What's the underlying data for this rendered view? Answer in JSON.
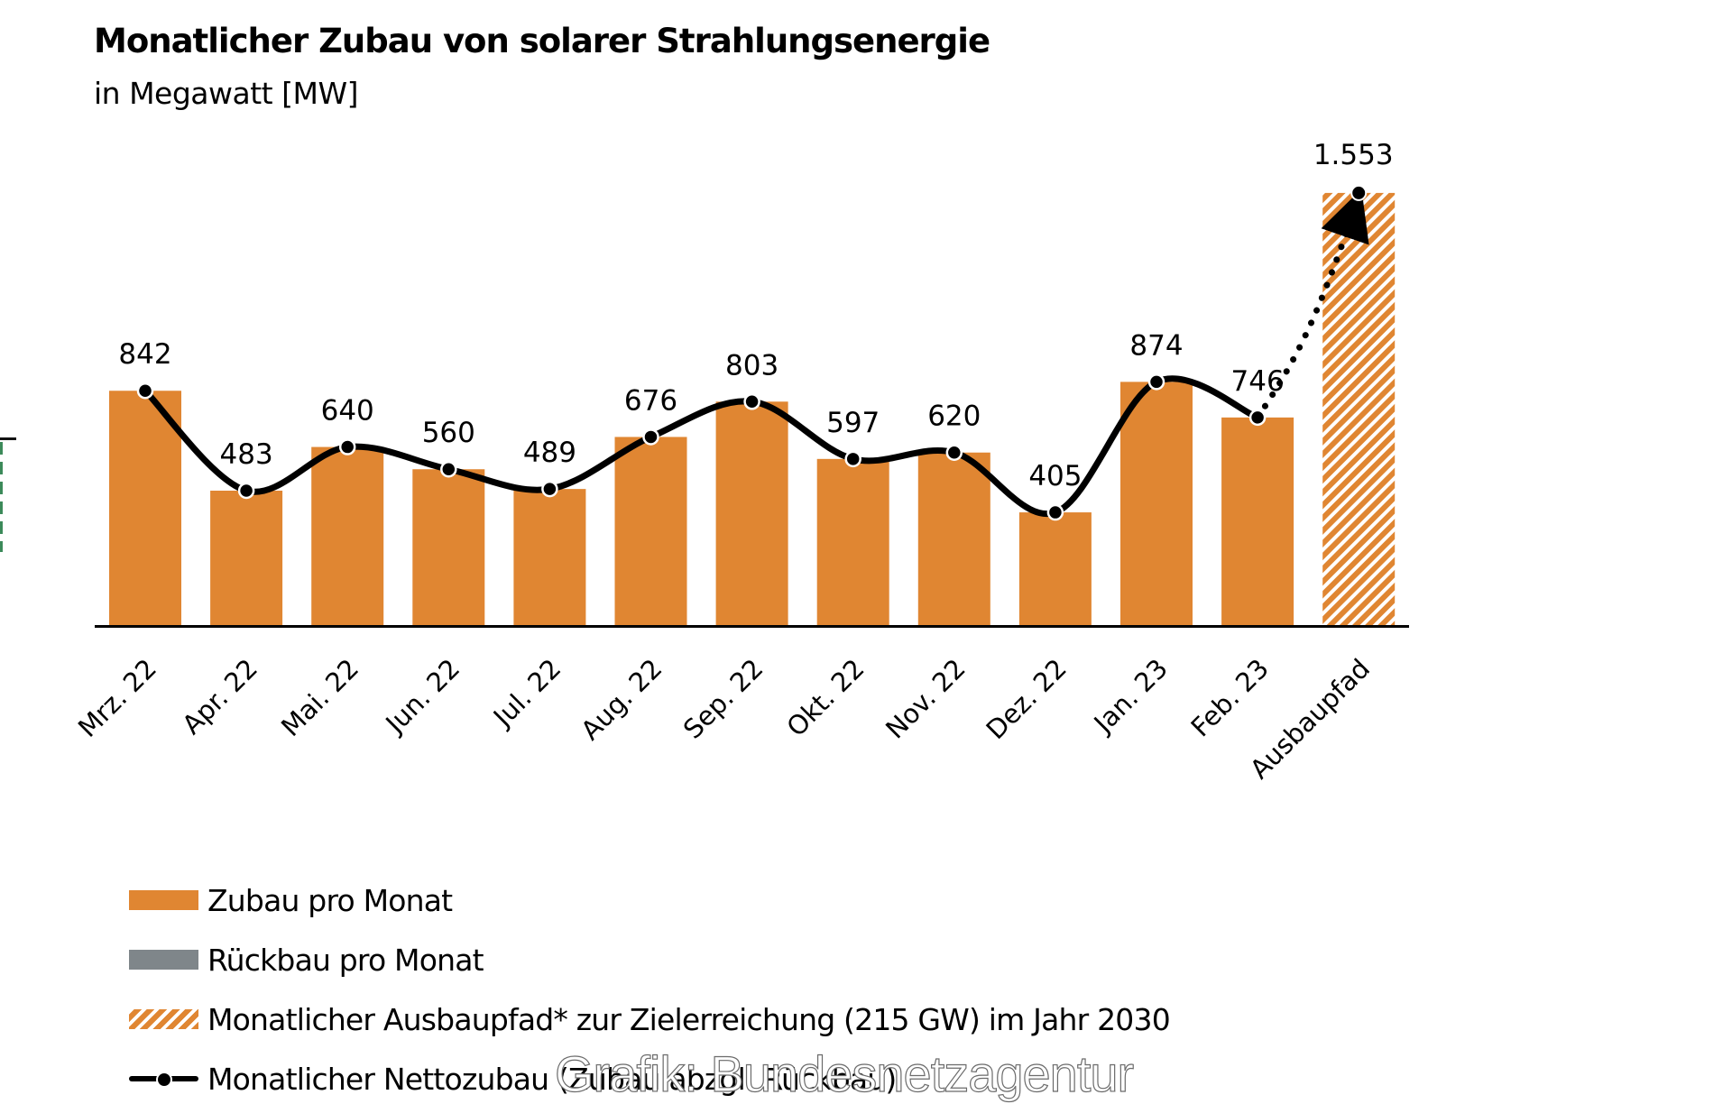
{
  "header": {
    "title": "Monatlicher Zubau von solarer Strahlungsenergie",
    "subtitle": "in Megawatt [MW]"
  },
  "colors": {
    "zubau": "#e08632",
    "rueckbau": "#7f868a",
    "ausbaupfad_stripe": "#e08632",
    "line": "#000000"
  },
  "chart_data": {
    "type": "bar",
    "title": "Monatlicher Zubau von solarer Strahlungsenergie",
    "subtitle": "in Megawatt [MW]",
    "xlabel": "",
    "ylabel": "MW",
    "ylim": [
      0,
      1600
    ],
    "grid": false,
    "categories": [
      "Mrz. 22",
      "Apr. 22",
      "Mai. 22",
      "Jun. 22",
      "Jul. 22",
      "Aug. 22",
      "Sep. 22",
      "Okt. 22",
      "Nov. 22",
      "Dez. 22",
      "Jan. 23",
      "Feb. 23",
      "Ausbaupfad"
    ],
    "series": [
      {
        "name": "Zubau pro Monat",
        "type": "bar",
        "values": [
          842,
          483,
          640,
          560,
          489,
          676,
          803,
          597,
          620,
          405,
          874,
          746,
          null
        ]
      },
      {
        "name": "Monatlicher Ausbaupfad* zur Zielerreichung (215 GW) im Jahr 2030",
        "type": "bar-hatched",
        "values": [
          null,
          null,
          null,
          null,
          null,
          null,
          null,
          null,
          null,
          null,
          null,
          null,
          1553
        ]
      },
      {
        "name": "Monatlicher Nettozubau (Zubau abzgl. Rückbau)",
        "type": "line-smooth",
        "values": [
          842,
          483,
          640,
          560,
          489,
          676,
          803,
          597,
          620,
          405,
          874,
          746,
          null
        ]
      }
    ],
    "data_labels": [
      "842",
      "483",
      "640",
      "560",
      "489",
      "676",
      "803",
      "597",
      "620",
      "405",
      "874",
      "746",
      "1.553"
    ],
    "trend_arrow": {
      "from": "Feb. 23",
      "to": "Ausbaupfad",
      "style": "dotted"
    },
    "legend_position": "bottom-left"
  },
  "legend": {
    "items": [
      {
        "label": "Zubau pro Monat",
        "swatch": "orange"
      },
      {
        "label": "Rückbau pro Monat",
        "swatch": "grey"
      },
      {
        "label": "Monatlicher Ausbaupfad* zur Zielerreichung (215 GW) im Jahr 2030",
        "swatch": "hatch"
      },
      {
        "label": "Monatlicher Nettozubau (Zubau abzgl. Rückbau)",
        "swatch": "line"
      }
    ]
  },
  "watermark": "Grafik: Bundesnetzagentur"
}
